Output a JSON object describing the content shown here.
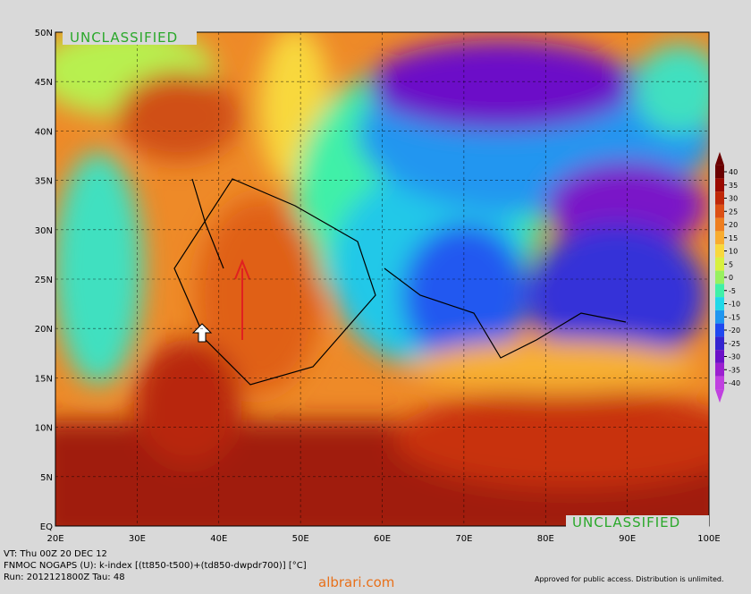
{
  "header": {
    "classification_top": "UNCLASSIFIED",
    "classification_bottom": "UNCLASSIFIED"
  },
  "map": {
    "lat_labels": [
      "50N",
      "45N",
      "40N",
      "35N",
      "30N",
      "25N",
      "20N",
      "15N",
      "10N",
      "5N",
      "EQ"
    ],
    "lon_labels": [
      "20E",
      "30E",
      "40E",
      "50E",
      "60E",
      "70E",
      "80E",
      "90E",
      "100E"
    ]
  },
  "colorbar": {
    "ticks": [
      40,
      35,
      30,
      25,
      20,
      15,
      10,
      5,
      0,
      -5,
      -10,
      -15,
      -20,
      -25,
      -30,
      -35,
      -40
    ],
    "colors": [
      "#6a0000",
      "#9a0a00",
      "#c02808",
      "#dc5014",
      "#ee7e20",
      "#f8ac30",
      "#f8d83c",
      "#d8f040",
      "#98f060",
      "#40f0a8",
      "#20d8e8",
      "#2096f0",
      "#2048f0",
      "#3424d0",
      "#6c10c8",
      "#9c20d0",
      "#c040e0"
    ]
  },
  "footer": {
    "valid_time": "VT: Thu 00Z 20 DEC 12",
    "product": "FNMOC NOGAPS (U): k-index [(tt850-t500)+(td850-dwpdr700)] [°C]",
    "run": "Run: 2012121800Z Tau: 48",
    "approval": "Approved for public access. Distribution is unlimited.",
    "watermark": "albrari.com"
  }
}
